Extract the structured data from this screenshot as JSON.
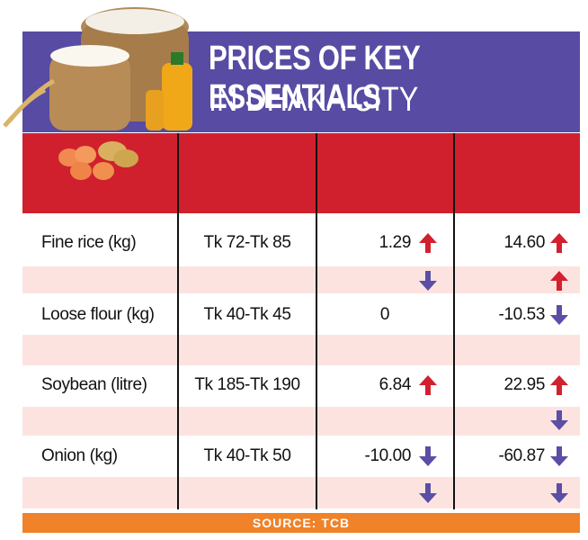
{
  "header": {
    "title_line1": "PRICES OF KEY ESSENTIALS",
    "title_line2": "IN DHAKA CITY"
  },
  "table": {
    "rows": [
      [
        "Fine rice (kg)",
        "Tk 72-Tk 85",
        "1.29",
        "14.60"
      ],
      [
        "Loose flour (kg)",
        "Tk 40-Tk 45",
        "0",
        "-10.53"
      ],
      [
        "Soybean (litre)",
        "Tk 185-Tk 190",
        "6.84",
        "22.95"
      ],
      [
        "Onion (kg)",
        "Tk 40-Tk 50",
        "-10.00",
        "-60.87"
      ]
    ]
  },
  "footer": {
    "source": "SOURCE: TCB"
  }
}
